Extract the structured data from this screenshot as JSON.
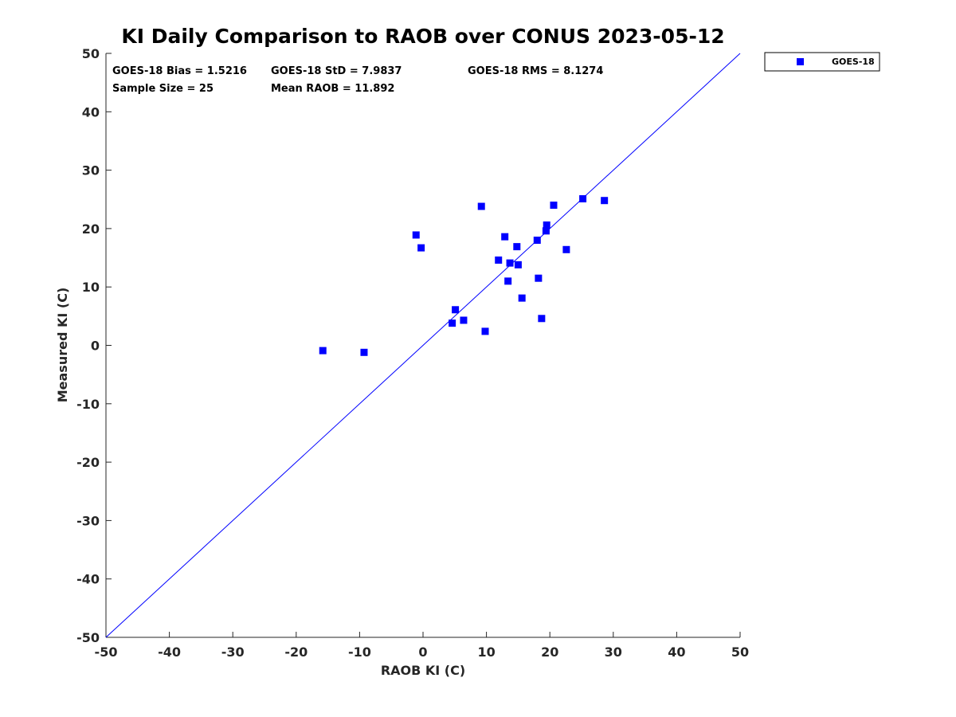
{
  "chart_data": {
    "type": "scatter",
    "title": "KI Daily Comparison to RAOB over CONUS 2023-05-12",
    "xlabel": "RAOB KI (C)",
    "ylabel": "Measured KI (C)",
    "xlim": [
      -50,
      50
    ],
    "ylim": [
      -50,
      50
    ],
    "xticks": [
      -50,
      -40,
      -30,
      -20,
      -10,
      0,
      10,
      20,
      30,
      40,
      50
    ],
    "yticks": [
      -50,
      -40,
      -30,
      -20,
      -10,
      0,
      10,
      20,
      30,
      40,
      50
    ],
    "xtick_labels": [
      "-50",
      "-40",
      "-30",
      "-20",
      "-10",
      "0",
      "10",
      "20",
      "30",
      "40",
      "50"
    ],
    "ytick_labels": [
      "-50",
      "-40",
      "-30",
      "-20",
      "-10",
      "0",
      "10",
      "20",
      "30",
      "40",
      "50"
    ],
    "grid": false,
    "legend_position": "outside top-right",
    "reference_line": {
      "from": [
        -50,
        -50
      ],
      "to": [
        50,
        50
      ],
      "color": "#0000ff"
    },
    "stats": [
      "GOES-18 Bias = 1.5216",
      "GOES-18 StD = 7.9837",
      "GOES-18 RMS = 8.1274",
      "Sample Size = 25",
      "Mean RAOB = 11.892"
    ],
    "series": [
      {
        "name": "GOES-18",
        "color": "#0000ff",
        "marker": "square",
        "x": [
          -15.8,
          -9.3,
          -1.1,
          -0.3,
          4.6,
          5.1,
          6.4,
          9.2,
          9.8,
          11.9,
          12.9,
          13.4,
          13.7,
          14.8,
          15.0,
          15.6,
          18.0,
          18.2,
          18.7,
          19.4,
          19.5,
          20.6,
          22.6,
          25.2,
          28.6
        ],
        "y": [
          -0.9,
          -1.2,
          18.9,
          16.7,
          3.8,
          6.1,
          4.3,
          23.8,
          2.4,
          14.6,
          18.6,
          11.0,
          14.1,
          16.9,
          13.8,
          8.1,
          18.0,
          11.5,
          4.6,
          19.6,
          20.6,
          24.0,
          16.4,
          25.1,
          24.8
        ]
      }
    ]
  }
}
